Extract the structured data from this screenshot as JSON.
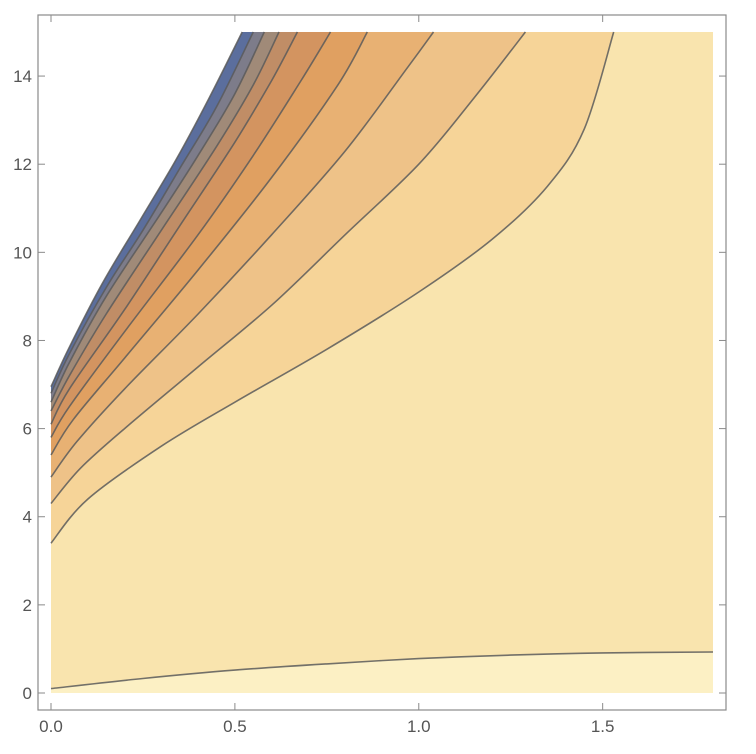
{
  "chart_data": {
    "type": "contour",
    "title": "",
    "xlabel": "",
    "ylabel": "",
    "xlim": [
      0.0,
      1.8
    ],
    "ylim": [
      0.0,
      15.0
    ],
    "x_ticks": [
      {
        "value": 0.0,
        "label": "0.0"
      },
      {
        "value": 0.5,
        "label": "0.5"
      },
      {
        "value": 1.0,
        "label": "1.0"
      },
      {
        "value": 1.5,
        "label": "1.5"
      }
    ],
    "y_ticks": [
      {
        "value": 0,
        "label": "0"
      },
      {
        "value": 2,
        "label": "2"
      },
      {
        "value": 4,
        "label": "4"
      },
      {
        "value": 6,
        "label": "6"
      },
      {
        "value": 8,
        "label": "8"
      },
      {
        "value": 10,
        "label": "10"
      },
      {
        "value": 12,
        "label": "12"
      },
      {
        "value": 14,
        "label": "14"
      }
    ],
    "grid": false,
    "background_fill": "#F9E4AE",
    "bottom_band_fill": "#FCF0C4",
    "contours": [
      {
        "fill": "#F6D498",
        "points": [
          [
            0.0,
            3.4
          ],
          [
            0.1,
            4.4
          ],
          [
            0.3,
            5.6
          ],
          [
            0.5,
            6.6
          ],
          [
            0.75,
            7.8
          ],
          [
            1.0,
            9.1
          ],
          [
            1.2,
            10.3
          ],
          [
            1.35,
            11.5
          ],
          [
            1.45,
            12.8
          ],
          [
            1.53,
            15.0
          ]
        ]
      },
      {
        "fill": "#EEC288",
        "points": [
          [
            0.0,
            4.3
          ],
          [
            0.08,
            5.1
          ],
          [
            0.2,
            6.0
          ],
          [
            0.4,
            7.4
          ],
          [
            0.6,
            8.8
          ],
          [
            0.8,
            10.4
          ],
          [
            1.0,
            12.0
          ],
          [
            1.15,
            13.5
          ],
          [
            1.29,
            15.0
          ]
        ]
      },
      {
        "fill": "#E8B173",
        "points": [
          [
            0.0,
            4.9
          ],
          [
            0.07,
            5.7
          ],
          [
            0.2,
            6.9
          ],
          [
            0.4,
            8.6
          ],
          [
            0.6,
            10.4
          ],
          [
            0.8,
            12.3
          ],
          [
            0.97,
            14.2
          ],
          [
            1.04,
            15.0
          ]
        ]
      },
      {
        "fill": "#E0A061",
        "points": [
          [
            0.0,
            5.4
          ],
          [
            0.06,
            6.2
          ],
          [
            0.2,
            7.6
          ],
          [
            0.4,
            9.6
          ],
          [
            0.6,
            11.7
          ],
          [
            0.78,
            13.8
          ],
          [
            0.86,
            15.0
          ]
        ]
      },
      {
        "fill": "#D39460",
        "points": [
          [
            0.0,
            5.8
          ],
          [
            0.05,
            6.5
          ],
          [
            0.2,
            8.2
          ],
          [
            0.4,
            10.4
          ],
          [
            0.55,
            12.2
          ],
          [
            0.68,
            13.9
          ],
          [
            0.76,
            15.0
          ]
        ]
      },
      {
        "fill": "#C08D66",
        "points": [
          [
            0.0,
            6.1
          ],
          [
            0.05,
            6.9
          ],
          [
            0.2,
            8.7
          ],
          [
            0.35,
            10.6
          ],
          [
            0.5,
            12.5
          ],
          [
            0.6,
            13.9
          ],
          [
            0.67,
            15.0
          ]
        ]
      },
      {
        "fill": "#A08A78",
        "points": [
          [
            0.0,
            6.4
          ],
          [
            0.05,
            7.2
          ],
          [
            0.15,
            8.6
          ],
          [
            0.3,
            10.5
          ],
          [
            0.45,
            12.4
          ],
          [
            0.55,
            13.8
          ],
          [
            0.62,
            15.0
          ]
        ]
      },
      {
        "fill": "#7D7C8A",
        "points": [
          [
            0.0,
            6.6
          ],
          [
            0.05,
            7.5
          ],
          [
            0.15,
            9.0
          ],
          [
            0.3,
            10.9
          ],
          [
            0.4,
            12.2
          ],
          [
            0.5,
            13.6
          ],
          [
            0.58,
            15.0
          ]
        ]
      },
      {
        "fill": "#5B6E9D",
        "points": [
          [
            0.0,
            6.8
          ],
          [
            0.05,
            7.7
          ],
          [
            0.15,
            9.2
          ],
          [
            0.25,
            10.5
          ],
          [
            0.35,
            11.9
          ],
          [
            0.45,
            13.3
          ],
          [
            0.55,
            15.0
          ]
        ]
      },
      {
        "fill": "#4A64A7",
        "points": [
          [
            0.0,
            6.95
          ],
          [
            0.05,
            7.85
          ],
          [
            0.14,
            9.3
          ],
          [
            0.24,
            10.7
          ],
          [
            0.34,
            12.1
          ],
          [
            0.43,
            13.5
          ],
          [
            0.52,
            15.0
          ]
        ]
      }
    ],
    "bottom_contour": [
      [
        0.0,
        0.1
      ],
      [
        0.25,
        0.33
      ],
      [
        0.5,
        0.52
      ],
      [
        0.75,
        0.66
      ],
      [
        1.0,
        0.78
      ],
      [
        1.25,
        0.86
      ],
      [
        1.5,
        0.91
      ],
      [
        1.8,
        0.93
      ]
    ]
  }
}
